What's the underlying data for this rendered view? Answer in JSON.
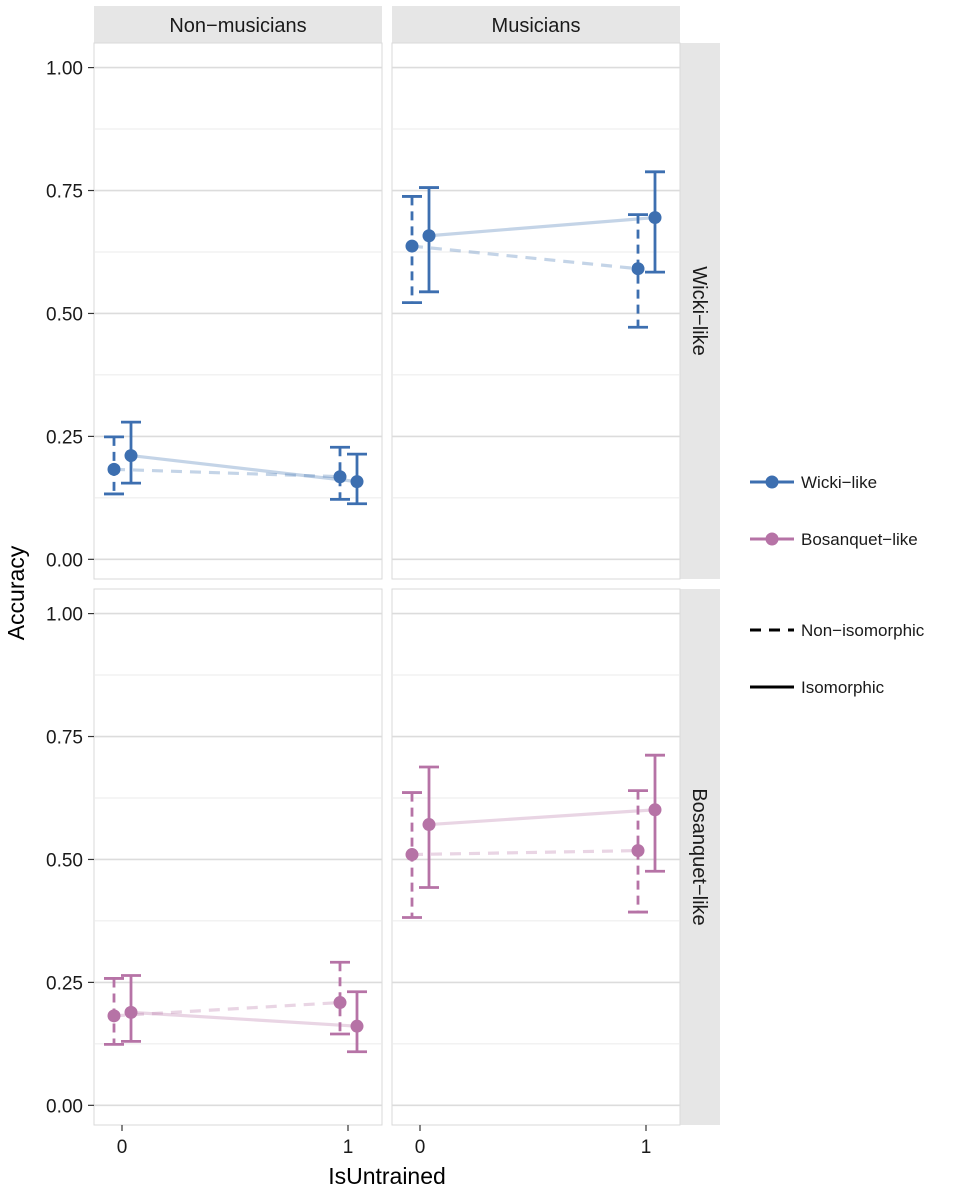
{
  "chart_data": {
    "type": "scatter",
    "xlabel": "IsUntrained",
    "ylabel": "Accuracy",
    "x_ticks": [
      "0",
      "1"
    ],
    "y_ticks": [
      "0.00",
      "0.25",
      "0.50",
      "0.75",
      "1.00"
    ],
    "ylim": [
      -0.04,
      1.05
    ],
    "columns": [
      "Non−musicians",
      "Musicians"
    ],
    "rows": [
      "Wicki−like",
      "Bosanquet−like"
    ],
    "legend": {
      "colors": [
        {
          "name": "Wicki−like",
          "color": "#3d6fb0"
        },
        {
          "name": "Bosanquet−like",
          "color": "#b673a6"
        }
      ],
      "linetypes": [
        {
          "name": "Non−isomorphic",
          "style": "dashed"
        },
        {
          "name": "Isomorphic",
          "style": "solid"
        }
      ]
    },
    "panels": [
      {
        "row": 0,
        "col": 0,
        "series": [
          {
            "layout": "Wicki−like",
            "type": "Non−isomorphic",
            "points": [
              {
                "x": 0,
                "y": 0.183,
                "lo": 0.133,
                "hi": 0.249
              },
              {
                "x": 1,
                "y": 0.168,
                "lo": 0.122,
                "hi": 0.228
              }
            ]
          },
          {
            "layout": "Wicki−like",
            "type": "Isomorphic",
            "points": [
              {
                "x": 0,
                "y": 0.211,
                "lo": 0.155,
                "hi": 0.279
              },
              {
                "x": 1,
                "y": 0.158,
                "lo": 0.113,
                "hi": 0.214
              }
            ]
          }
        ]
      },
      {
        "row": 0,
        "col": 1,
        "series": [
          {
            "layout": "Wicki−like",
            "type": "Non−isomorphic",
            "points": [
              {
                "x": 0,
                "y": 0.637,
                "lo": 0.522,
                "hi": 0.738
              },
              {
                "x": 1,
                "y": 0.591,
                "lo": 0.472,
                "hi": 0.701
              }
            ]
          },
          {
            "layout": "Wicki−like",
            "type": "Isomorphic",
            "points": [
              {
                "x": 0,
                "y": 0.658,
                "lo": 0.544,
                "hi": 0.756
              },
              {
                "x": 1,
                "y": 0.695,
                "lo": 0.584,
                "hi": 0.788
              }
            ]
          }
        ]
      },
      {
        "row": 1,
        "col": 0,
        "series": [
          {
            "layout": "Bosanquet−like",
            "type": "Non−isomorphic",
            "points": [
              {
                "x": 0,
                "y": 0.182,
                "lo": 0.124,
                "hi": 0.258
              },
              {
                "x": 1,
                "y": 0.209,
                "lo": 0.145,
                "hi": 0.291
              }
            ]
          },
          {
            "layout": "Bosanquet−like",
            "type": "Isomorphic",
            "points": [
              {
                "x": 0,
                "y": 0.189,
                "lo": 0.13,
                "hi": 0.264
              },
              {
                "x": 1,
                "y": 0.161,
                "lo": 0.109,
                "hi": 0.231
              }
            ]
          }
        ]
      },
      {
        "row": 1,
        "col": 1,
        "series": [
          {
            "layout": "Bosanquet−like",
            "type": "Non−isomorphic",
            "points": [
              {
                "x": 0,
                "y": 0.51,
                "lo": 0.382,
                "hi": 0.636
              },
              {
                "x": 1,
                "y": 0.518,
                "lo": 0.393,
                "hi": 0.64
              }
            ]
          },
          {
            "layout": "Bosanquet−like",
            "type": "Isomorphic",
            "points": [
              {
                "x": 0,
                "y": 0.571,
                "lo": 0.443,
                "hi": 0.688
              },
              {
                "x": 1,
                "y": 0.601,
                "lo": 0.476,
                "hi": 0.712
              }
            ]
          }
        ]
      }
    ]
  }
}
